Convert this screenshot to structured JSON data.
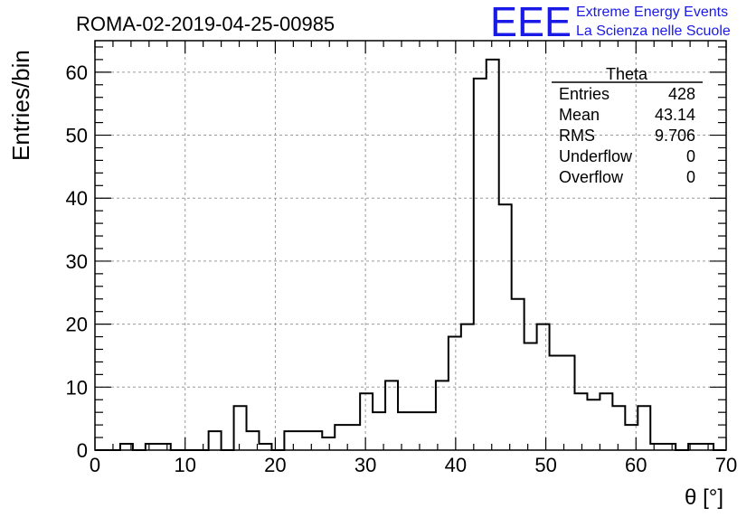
{
  "chart_data": {
    "type": "bar",
    "title": "ROMA-02-2019-04-25-00985",
    "xlabel": "θ [°]",
    "ylabel": "Entries/bin",
    "xlim": [
      0,
      70
    ],
    "ylim": [
      0,
      65
    ],
    "xticks": [
      0,
      10,
      20,
      30,
      40,
      50,
      60,
      70
    ],
    "yticks": [
      0,
      10,
      20,
      30,
      40,
      50,
      60
    ],
    "grid": true,
    "bin_width": 1.4,
    "values": [
      0,
      0,
      1,
      0,
      1,
      1,
      0,
      0,
      0,
      3,
      0,
      7,
      3,
      1,
      0,
      3,
      3,
      3,
      2,
      4,
      4,
      9,
      6,
      11,
      6,
      6,
      6,
      11,
      18,
      20,
      59,
      62,
      39,
      24,
      17,
      20,
      15,
      15,
      9,
      8,
      9,
      7,
      4,
      7,
      1,
      1,
      0,
      1,
      1,
      0
    ],
    "stats_box": {
      "title": "Theta",
      "position": "top-right",
      "rows": [
        {
          "label": "Entries",
          "value": "428"
        },
        {
          "label": "Mean",
          "value": "43.14"
        },
        {
          "label": "RMS",
          "value": "9.706"
        },
        {
          "label": "Underflow",
          "value": "0"
        },
        {
          "label": "Overflow",
          "value": "0"
        }
      ]
    }
  },
  "logo": {
    "text": "EEE",
    "line1": "Extreme Energy Events",
    "line2": "La Scienza nelle Scuole",
    "color": "#1a1ae6"
  }
}
